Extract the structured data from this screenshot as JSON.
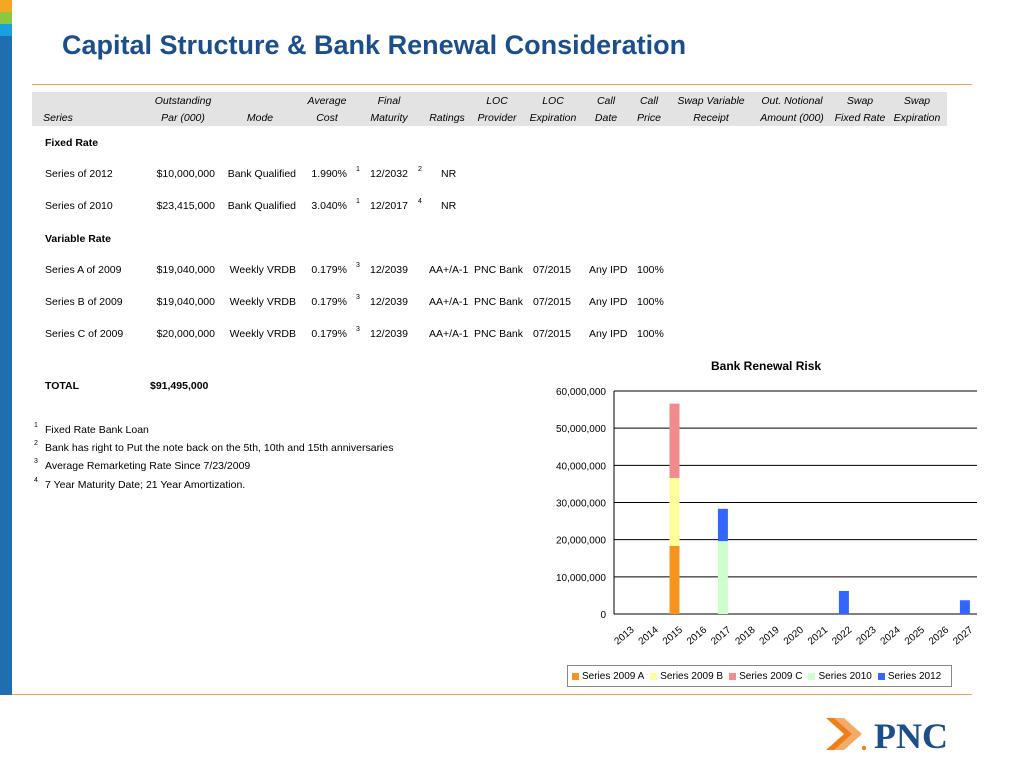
{
  "title": "Capital Structure & Bank Renewal Consideration",
  "header": {
    "row1": [
      "",
      "Outstanding",
      "",
      "Average",
      "Final",
      "",
      "LOC",
      "LOC",
      "Call",
      "Call",
      "Swap Variable",
      "Out. Notional",
      "Swap",
      "Swap"
    ],
    "row2": [
      "Series",
      "Par (000)",
      "Mode",
      "Cost",
      "Maturity",
      "Ratings",
      "Provider",
      "Expiration",
      "Date",
      "Price",
      "Receipt",
      "Amount (000)",
      "Fixed Rate",
      "Expiration"
    ]
  },
  "sections": {
    "fixed": "Fixed Rate",
    "variable": "Variable Rate"
  },
  "fixed_rows": [
    {
      "series": "Series of 2012",
      "par": "$10,000,000",
      "mode": "Bank Qualified",
      "cost": "1.990%",
      "cost_fn": "1",
      "maturity": "12/2032",
      "mat_fn": "2",
      "ratings": "NR"
    },
    {
      "series": "Series of 2010",
      "par": "$23,415,000",
      "mode": "Bank Qualified",
      "cost": "3.040%",
      "cost_fn": "1",
      "maturity": "12/2017",
      "mat_fn": "4",
      "ratings": "NR"
    }
  ],
  "variable_rows": [
    {
      "series": "Series A of 2009",
      "par": "$19,040,000",
      "mode": "Weekly VRDB",
      "cost": "0.179%",
      "cost_fn": "3",
      "maturity": "12/2039",
      "ratings": "AA+/A-1",
      "provider": "PNC Bank",
      "loc_exp": "07/2015",
      "call_date": "Any IPD",
      "call_price": "100%"
    },
    {
      "series": "Series B of 2009",
      "par": "$19,040,000",
      "mode": "Weekly VRDB",
      "cost": "0.179%",
      "cost_fn": "3",
      "maturity": "12/2039",
      "ratings": "AA+/A-1",
      "provider": "PNC Bank",
      "loc_exp": "07/2015",
      "call_date": "Any IPD",
      "call_price": "100%"
    },
    {
      "series": "Series C of 2009",
      "par": "$20,000,000",
      "mode": "Weekly VRDB",
      "cost": "0.179%",
      "cost_fn": "3",
      "maturity": "12/2039",
      "ratings": "AA+/A-1",
      "provider": "PNC Bank",
      "loc_exp": "07/2015",
      "call_date": "Any IPD",
      "call_price": "100%"
    }
  ],
  "total": {
    "label": "TOTAL",
    "value": "$91,495,000"
  },
  "footnotes": [
    {
      "num": "1",
      "text": "Fixed Rate Bank Loan"
    },
    {
      "num": "2",
      "text": "Bank has right to Put the note back on the 5th, 10th and 15th anniversaries"
    },
    {
      "num": "3",
      "text": "Average Remarketing Rate Since 7/23/2009"
    },
    {
      "num": "4",
      "text": "7 Year Maturity Date; 21 Year Amortization."
    }
  ],
  "chart_data": {
    "type": "bar",
    "stacked": true,
    "title": "Bank Renewal Risk",
    "categories": [
      "2013",
      "2014",
      "2015",
      "2016",
      "2017",
      "2018",
      "2019",
      "2020",
      "2021",
      "2022",
      "2023",
      "2024",
      "2025",
      "2026",
      "2027"
    ],
    "series": [
      {
        "name": "Series 2009 A",
        "color": "#f7941d",
        "values": [
          0,
          0,
          18300000,
          0,
          0,
          0,
          0,
          0,
          0,
          0,
          0,
          0,
          0,
          0,
          0
        ]
      },
      {
        "name": "Series 2009 B",
        "color": "#ffff99",
        "values": [
          0,
          0,
          18300000,
          0,
          0,
          0,
          0,
          0,
          0,
          0,
          0,
          0,
          0,
          0,
          0
        ]
      },
      {
        "name": "Series 2009 C",
        "color": "#f28b8b",
        "values": [
          0,
          0,
          20000000,
          0,
          0,
          0,
          0,
          0,
          0,
          0,
          0,
          0,
          0,
          0,
          0
        ]
      },
      {
        "name": "Series 2010",
        "color": "#ccffcc",
        "values": [
          0,
          0,
          0,
          0,
          19600000,
          0,
          0,
          0,
          0,
          0,
          0,
          0,
          0,
          0,
          0
        ]
      },
      {
        "name": "Series 2012",
        "color": "#3366ff",
        "values": [
          0,
          0,
          0,
          0,
          8700000,
          0,
          0,
          0,
          0,
          6200000,
          0,
          0,
          0,
          0,
          3700000
        ]
      }
    ],
    "ylim": [
      0,
      60000000
    ],
    "yticks": [
      "0",
      "10,000,000",
      "20,000,000",
      "30,000,000",
      "40,000,000",
      "50,000,000",
      "60,000,000"
    ],
    "grid": true,
    "legend": "bottom"
  },
  "logo_text": "PNC",
  "colors": {
    "title": "#1b4f8c",
    "accent": "#f0a050",
    "brand_orange": "#ef7f1a",
    "brand_blue": "#1b4f8c"
  }
}
